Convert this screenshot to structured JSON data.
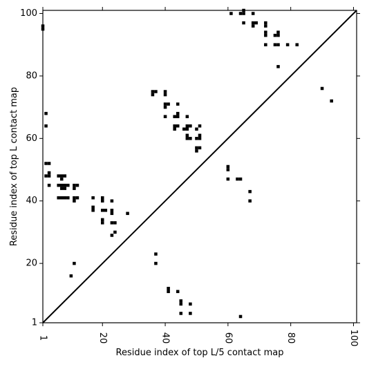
{
  "chart_data": {
    "type": "heatmap",
    "title": "",
    "xlabel": "Residue index of top L/5 contact map",
    "ylabel": "Residue index of top L contact map",
    "xlim": [
      1,
      101
    ],
    "ylim": [
      1,
      101
    ],
    "xticks": [
      1,
      20,
      40,
      60,
      80,
      100
    ],
    "yticks": [
      1,
      20,
      40,
      60,
      80,
      100
    ],
    "xtick_labels": [
      "1",
      "20",
      "40",
      "60",
      "80",
      "100"
    ],
    "ytick_labels": [
      "1",
      "20",
      "40",
      "60",
      "80",
      "100"
    ],
    "diagonal": true,
    "marker_color": "#000000",
    "grid": false,
    "cells": [
      [
        1,
        95
      ],
      [
        1,
        96
      ],
      [
        2,
        68
      ],
      [
        2,
        64
      ],
      [
        2,
        52
      ],
      [
        3,
        52
      ],
      [
        2,
        48
      ],
      [
        3,
        48
      ],
      [
        3,
        49
      ],
      [
        3,
        45
      ],
      [
        6,
        48
      ],
      [
        7,
        48
      ],
      [
        8,
        48
      ],
      [
        6,
        45
      ],
      [
        7,
        45
      ],
      [
        8,
        45
      ],
      [
        9,
        45
      ],
      [
        7,
        44
      ],
      [
        8,
        44
      ],
      [
        7,
        47
      ],
      [
        6,
        41
      ],
      [
        7,
        41
      ],
      [
        8,
        41
      ],
      [
        9,
        41
      ],
      [
        11,
        45
      ],
      [
        12,
        45
      ],
      [
        11,
        44
      ],
      [
        11,
        41
      ],
      [
        12,
        41
      ],
      [
        11,
        40
      ],
      [
        17,
        41
      ],
      [
        20,
        41
      ],
      [
        20,
        40
      ],
      [
        17,
        38
      ],
      [
        17,
        37
      ],
      [
        20,
        37
      ],
      [
        21,
        37
      ],
      [
        23,
        37
      ],
      [
        23,
        36
      ],
      [
        20,
        34
      ],
      [
        20,
        33
      ],
      [
        23,
        33
      ],
      [
        24,
        33
      ],
      [
        23,
        29
      ],
      [
        24,
        30
      ],
      [
        23,
        40
      ],
      [
        28,
        36
      ],
      [
        11,
        20
      ],
      [
        10,
        16
      ],
      [
        36,
        75
      ],
      [
        37,
        75
      ],
      [
        36,
        74
      ],
      [
        40,
        75
      ],
      [
        40,
        74
      ],
      [
        40,
        71
      ],
      [
        41,
        71
      ],
      [
        40,
        70
      ],
      [
        44,
        71
      ],
      [
        40,
        67
      ],
      [
        43,
        67
      ],
      [
        44,
        68
      ],
      [
        44,
        67
      ],
      [
        47,
        67
      ],
      [
        43,
        64
      ],
      [
        44,
        64
      ],
      [
        43,
        63
      ],
      [
        46,
        63
      ],
      [
        47,
        63
      ],
      [
        47,
        64
      ],
      [
        48,
        64
      ],
      [
        50,
        63
      ],
      [
        51,
        64
      ],
      [
        47,
        61
      ],
      [
        47,
        60
      ],
      [
        48,
        60
      ],
      [
        50,
        60
      ],
      [
        51,
        60
      ],
      [
        51,
        61
      ],
      [
        50,
        57
      ],
      [
        51,
        57
      ],
      [
        50,
        56
      ],
      [
        37,
        23
      ],
      [
        37,
        20
      ],
      [
        41,
        12
      ],
      [
        41,
        11
      ],
      [
        44,
        11
      ],
      [
        45,
        8
      ],
      [
        45,
        7
      ],
      [
        48,
        7
      ],
      [
        45,
        4
      ],
      [
        48,
        4
      ],
      [
        60,
        51
      ],
      [
        60,
        50
      ],
      [
        60,
        47
      ],
      [
        63,
        47
      ],
      [
        64,
        47
      ],
      [
        67,
        43
      ],
      [
        67,
        40
      ],
      [
        64,
        3
      ],
      [
        61,
        100
      ],
      [
        64,
        100
      ],
      [
        65,
        100
      ],
      [
        65,
        101
      ],
      [
        68,
        100
      ],
      [
        65,
        97
      ],
      [
        68,
        97
      ],
      [
        69,
        97
      ],
      [
        68,
        96
      ],
      [
        72,
        97
      ],
      [
        72,
        96
      ],
      [
        72,
        94
      ],
      [
        72,
        93
      ],
      [
        72,
        90
      ],
      [
        75,
        93
      ],
      [
        76,
        93
      ],
      [
        76,
        94
      ],
      [
        75,
        90
      ],
      [
        76,
        90
      ],
      [
        79,
        90
      ],
      [
        82,
        90
      ],
      [
        76,
        83
      ],
      [
        90,
        76
      ],
      [
        93,
        72
      ]
    ]
  }
}
